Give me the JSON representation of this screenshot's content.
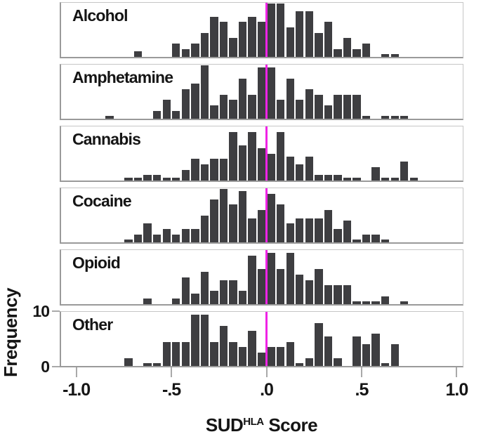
{
  "chart_data": {
    "type": "bar",
    "subtype": "faceted-histogram",
    "bin_width": 0.05,
    "x_axis": {
      "title_main": "SUD",
      "title_sup": "HLA",
      "title_rest": " Score",
      "ticks": [
        -1.0,
        -0.5,
        0.0,
        0.5,
        1.0
      ],
      "tick_labels": [
        "-1.0",
        "-.5",
        ".0",
        ".5",
        "1.0"
      ],
      "range": [
        -1.08,
        1.03
      ]
    },
    "y_axis": {
      "label": "Frequency",
      "tick_values": [
        0,
        10
      ],
      "tick_labels": [
        "0",
        "10"
      ],
      "max": 10
    },
    "reference_line": {
      "x": 0.0
    },
    "panels": [
      {
        "label": "Alcohol",
        "bin_start": -0.7,
        "frequencies": [
          1,
          0,
          0,
          0,
          2.5,
          1.5,
          2.5,
          4.5,
          7.5,
          6.5,
          3.5,
          6.5,
          7.5,
          6.5,
          10,
          10,
          5.5,
          8.5,
          8.5,
          4.5,
          6.5,
          1.5,
          3.5,
          1.5,
          2.5,
          0,
          0.5,
          0.5
        ]
      },
      {
        "label": "Amphetamine",
        "bin_start": -0.85,
        "frequencies": [
          0.5,
          0,
          0,
          0,
          0,
          1.5,
          3.5,
          1.5,
          5.5,
          6.5,
          10,
          2.5,
          4.5,
          3.5,
          7.5,
          4.5,
          9.5,
          9.5,
          3.5,
          7.5,
          3.5,
          5.5,
          4.5,
          2.5,
          4.5,
          4.5,
          4.5,
          0.5,
          0,
          0.5,
          0.5,
          0.5
        ]
      },
      {
        "label": "Cannabis",
        "bin_start": -0.75,
        "frequencies": [
          0.5,
          0.5,
          1,
          1,
          0.5,
          0.5,
          2,
          4,
          3,
          4,
          4,
          9,
          6.5,
          9,
          6,
          5,
          9,
          4.5,
          3,
          4.5,
          1,
          1,
          1,
          0.5,
          0.5,
          0,
          2.5,
          0.5,
          0.5,
          3.5,
          0.5
        ]
      },
      {
        "label": "Cocaine",
        "bin_start": -0.75,
        "frequencies": [
          0.5,
          1.5,
          3.5,
          1.5,
          2.5,
          1.5,
          2.5,
          2.5,
          5,
          8,
          10,
          7,
          9.5,
          4.5,
          6,
          9,
          7,
          3.5,
          4.5,
          4.5,
          4.5,
          6,
          2.5,
          4,
          0.5,
          1.5,
          1.5,
          0.5
        ]
      },
      {
        "label": "Opioid",
        "bin_start": -0.65,
        "frequencies": [
          1,
          0,
          0,
          1,
          5,
          2,
          6,
          2.5,
          4.5,
          4.5,
          2.5,
          9,
          6.5,
          9.5,
          6.5,
          9.5,
          5.5,
          4.5,
          6.5,
          3.5,
          3.5,
          3.5,
          0.5,
          0.5,
          0.5,
          1.5,
          0,
          0.5
        ]
      },
      {
        "label": "Other",
        "bin_start": -0.75,
        "frequencies": [
          1.5,
          0,
          0.5,
          0.5,
          4.5,
          4.5,
          4.5,
          9.5,
          9.5,
          4.5,
          7.5,
          4.5,
          3.5,
          6.5,
          2.5,
          3.5,
          3.5,
          4.5,
          0.5,
          1.5,
          8,
          5.5,
          1.5,
          0,
          5.5,
          4,
          6,
          0.5,
          4
        ]
      }
    ]
  },
  "colors": {
    "bar": "#3e3e41",
    "panel_border_light": "#c6c6c6",
    "panel_border_dark": "#9a9a9a",
    "axis_tick": "#a9a9a9",
    "reference_line": "#f024e6",
    "text": "#151515",
    "background": "#ffffff"
  }
}
